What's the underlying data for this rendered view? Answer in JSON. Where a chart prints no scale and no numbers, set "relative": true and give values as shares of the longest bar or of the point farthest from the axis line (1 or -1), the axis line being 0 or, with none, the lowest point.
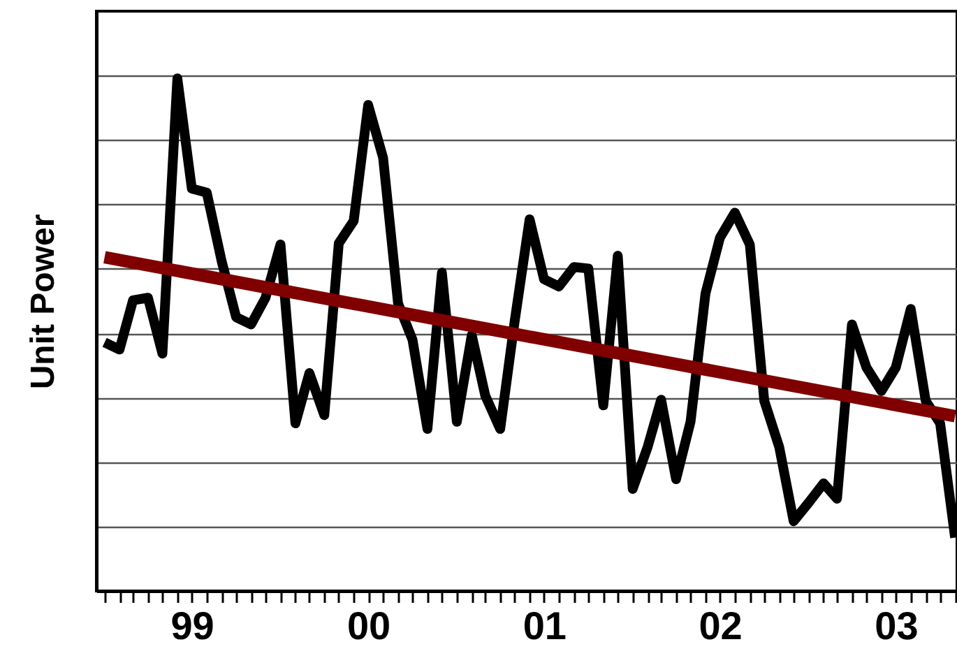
{
  "chart_data": {
    "type": "line",
    "ylabel": "Unit Power",
    "relative": true,
    "grid": "y",
    "x": [
      "1999-01",
      "1999-02",
      "1999-03",
      "1999-04",
      "1999-05",
      "1999-06",
      "1999-07",
      "1999-08",
      "1999-09",
      "1999-10",
      "1999-11",
      "1999-12",
      "2000-01",
      "2000-02",
      "2000-03",
      "2000-04",
      "2000-05",
      "2000-06",
      "2000-07",
      "2000-08",
      "2000-09",
      "2000-10",
      "2000-11",
      "2000-12",
      "2001-01",
      "2001-02",
      "2001-03",
      "2001-04",
      "2001-05",
      "2001-06",
      "2001-07",
      "2001-08",
      "2001-09",
      "2001-10",
      "2001-11",
      "2001-12",
      "2002-01",
      "2002-02",
      "2002-03",
      "2002-04",
      "2002-05",
      "2002-06",
      "2002-07",
      "2002-08",
      "2002-09",
      "2002-10",
      "2002-11",
      "2002-12",
      "2003-01",
      "2003-02",
      "2003-03",
      "2003-04",
      "2003-05",
      "2003-06",
      "2003-07",
      "2003-08",
      "2003-09",
      "2003-10",
      "2003-11"
    ],
    "xlim": [
      "1998-12-15",
      "2003-11-05"
    ],
    "xticks": [
      {
        "value": "1999-01",
        "label": null
      },
      {
        "value": "1999-02",
        "label": null
      },
      {
        "value": "1999-03",
        "label": null
      },
      {
        "value": "1999-04",
        "label": null
      },
      {
        "value": "1999-05",
        "label": null
      },
      {
        "value": "1999-06",
        "label": null
      },
      {
        "value": "1999-07",
        "label": "99"
      },
      {
        "value": "1999-08",
        "label": null
      },
      {
        "value": "1999-09",
        "label": null
      },
      {
        "value": "1999-10",
        "label": null
      },
      {
        "value": "1999-11",
        "label": null
      },
      {
        "value": "1999-12",
        "label": null
      },
      {
        "value": "2000-01",
        "label": null
      },
      {
        "value": "2000-02",
        "label": null
      },
      {
        "value": "2000-03",
        "label": null
      },
      {
        "value": "2000-04",
        "label": null
      },
      {
        "value": "2000-05",
        "label": null
      },
      {
        "value": "2000-06",
        "label": null
      },
      {
        "value": "2000-07",
        "label": "00"
      },
      {
        "value": "2000-08",
        "label": null
      },
      {
        "value": "2000-09",
        "label": null
      },
      {
        "value": "2000-10",
        "label": null
      },
      {
        "value": "2000-11",
        "label": null
      },
      {
        "value": "2000-12",
        "label": null
      },
      {
        "value": "2001-01",
        "label": null
      },
      {
        "value": "2001-02",
        "label": null
      },
      {
        "value": "2001-03",
        "label": null
      },
      {
        "value": "2001-04",
        "label": null
      },
      {
        "value": "2001-05",
        "label": null
      },
      {
        "value": "2001-06",
        "label": null
      },
      {
        "value": "2001-07",
        "label": "01"
      },
      {
        "value": "2001-08",
        "label": null
      },
      {
        "value": "2001-09",
        "label": null
      },
      {
        "value": "2001-10",
        "label": null
      },
      {
        "value": "2001-11",
        "label": null
      },
      {
        "value": "2001-12",
        "label": null
      },
      {
        "value": "2002-01",
        "label": null
      },
      {
        "value": "2002-02",
        "label": null
      },
      {
        "value": "2002-03",
        "label": null
      },
      {
        "value": "2002-04",
        "label": null
      },
      {
        "value": "2002-05",
        "label": null
      },
      {
        "value": "2002-06",
        "label": null
      },
      {
        "value": "2002-07",
        "label": "02"
      },
      {
        "value": "2002-08",
        "label": null
      },
      {
        "value": "2002-09",
        "label": null
      },
      {
        "value": "2002-10",
        "label": null
      },
      {
        "value": "2002-11",
        "label": null
      },
      {
        "value": "2002-12",
        "label": null
      },
      {
        "value": "2003-01",
        "label": null
      },
      {
        "value": "2003-02",
        "label": null
      },
      {
        "value": "2003-03",
        "label": null
      },
      {
        "value": "2003-04",
        "label": null
      },
      {
        "value": "2003-05",
        "label": null
      },
      {
        "value": "2003-06",
        "label": null
      },
      {
        "value": "2003-07",
        "label": "03"
      },
      {
        "value": "2003-08",
        "label": null
      },
      {
        "value": "2003-09",
        "label": null
      },
      {
        "value": "2003-10",
        "label": null
      },
      {
        "value": "2003-11",
        "label": null
      }
    ],
    "series": [
      {
        "color": "#000000",
        "values": [
          0.485,
          0.471,
          0.567,
          0.572,
          0.463,
          1,
          0.785,
          0.777,
          0.643,
          0.534,
          0.52,
          0.572,
          0.676,
          0.327,
          0.425,
          0.343,
          0.678,
          0.722,
          0.948,
          0.845,
          0.561,
          0.49,
          0.316,
          0.621,
          0.33,
          0.499,
          0.381,
          0.316,
          0.526,
          0.725,
          0.608,
          0.594,
          0.632,
          0.629,
          0.362,
          0.654,
          0.199,
          0.281,
          0.373,
          0.218,
          0.33,
          0.58,
          0.689,
          0.738,
          0.676,
          0.371,
          0.281,
          0.136,
          0.172,
          0.21,
          0.18,
          0.52,
          0.436,
          0.39,
          0.436,
          0.55,
          0.371,
          0.327,
          0.104
        ]
      },
      {
        "type": "line",
        "color": "#800000",
        "x": [
          "1999-01",
          "2003-11"
        ],
        "values": [
          0.651,
          0.341
        ]
      }
    ]
  }
}
